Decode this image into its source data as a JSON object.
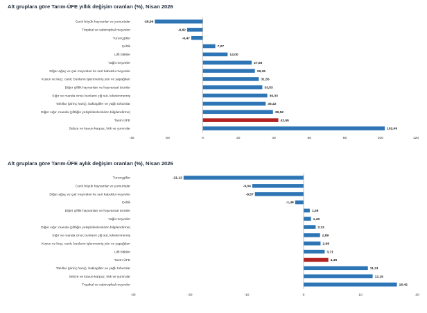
{
  "chart_data": [
    {
      "type": "bar",
      "title": "Alt gruplara göre Tarım-ÜFE yıllık değişim oranları (%), Nisan 2026",
      "categories": [
        "Canlı büyük hayvanlar ve yumurtalar",
        "Tropikal ve subtropikal meyveler",
        "Turunçgiller",
        "Çeltik",
        "Lifli bitkiler",
        "Yağlı meyveler",
        "Diğer ağaç ve çalı meyveleri ile sert kabuklu meyveler",
        "Koyun ve keçi, canlı; bunların işlenmemiş yün ve yapağıları",
        "Diğer çiftlik hayvanları ve hayvansal ürünler",
        "Sığır ve manda cinsi; bunların çiğ süt, lekelenmemiş",
        "Tahıllar (pirinç hariç), baklagiller ve yağlı tohumlar",
        "Diğer sığır, manda (çiftliğin yetiştirilenlerinden bilgilendirme)",
        "Tarım ÜFE",
        "Sebze ve kavun-karpuz, kök ve yumrular"
      ],
      "values": [
        -26.99,
        -8.82,
        -6.47,
        7.07,
        14.0,
        27.55,
        29.36,
        31.55,
        33.53,
        36.33,
        35.42,
        39.52,
        42.55,
        102.49
      ],
      "highlight": "Tarım ÜFE",
      "xlim": [
        -40,
        120
      ],
      "xticks": [
        -40,
        -20,
        0,
        20,
        40,
        60,
        80,
        100,
        120
      ]
    },
    {
      "type": "bar",
      "title": "Alt gruplara göre Tarım-ÜFE aylık değişim oranları (%), Nisan 2026",
      "categories": [
        "Turunçgiller",
        "Canlı büyük hayvanlar ve yumurtalar",
        "Diğer ağaç ve çalı meyveleri ile sert kabuklu meyveler",
        "Çeltik",
        "Diğer çiftlik hayvanları ve hayvansal ürünler",
        "Yağlı meyveler",
        "Diğer sığır, manda (çiftliğin yetiştirilenlerinden bilgilendirme)",
        "Sığır ve manda cinsi; bunların çiğ süt, lekelenmemiş",
        "Koyun ve keçi, canlı; bunların işlenmemiş yün ve yapağıları",
        "Lifli bitkiler",
        "Tarım ÜFE",
        "Tahıllar (pirinç hariç), baklagiller ve yağlı tohumlar",
        "Sebze ve kavun-karpuz, kök ve yumrular",
        "Tropikal ve subtropikal meyveler"
      ],
      "values": [
        -21.12,
        -9.04,
        -8.57,
        -1.49,
        1.08,
        1.3,
        2.12,
        2.89,
        2.98,
        3.71,
        4.35,
        11.31,
        12.15,
        16.42
      ],
      "highlight": "Tarım ÜFE",
      "xlim": [
        -30,
        20
      ],
      "xticks": [
        -30,
        -20,
        -10,
        0,
        10,
        20
      ]
    }
  ],
  "colors": {
    "bar": "#2e75b6",
    "highlight": "#b22222",
    "axis": "#999999"
  }
}
